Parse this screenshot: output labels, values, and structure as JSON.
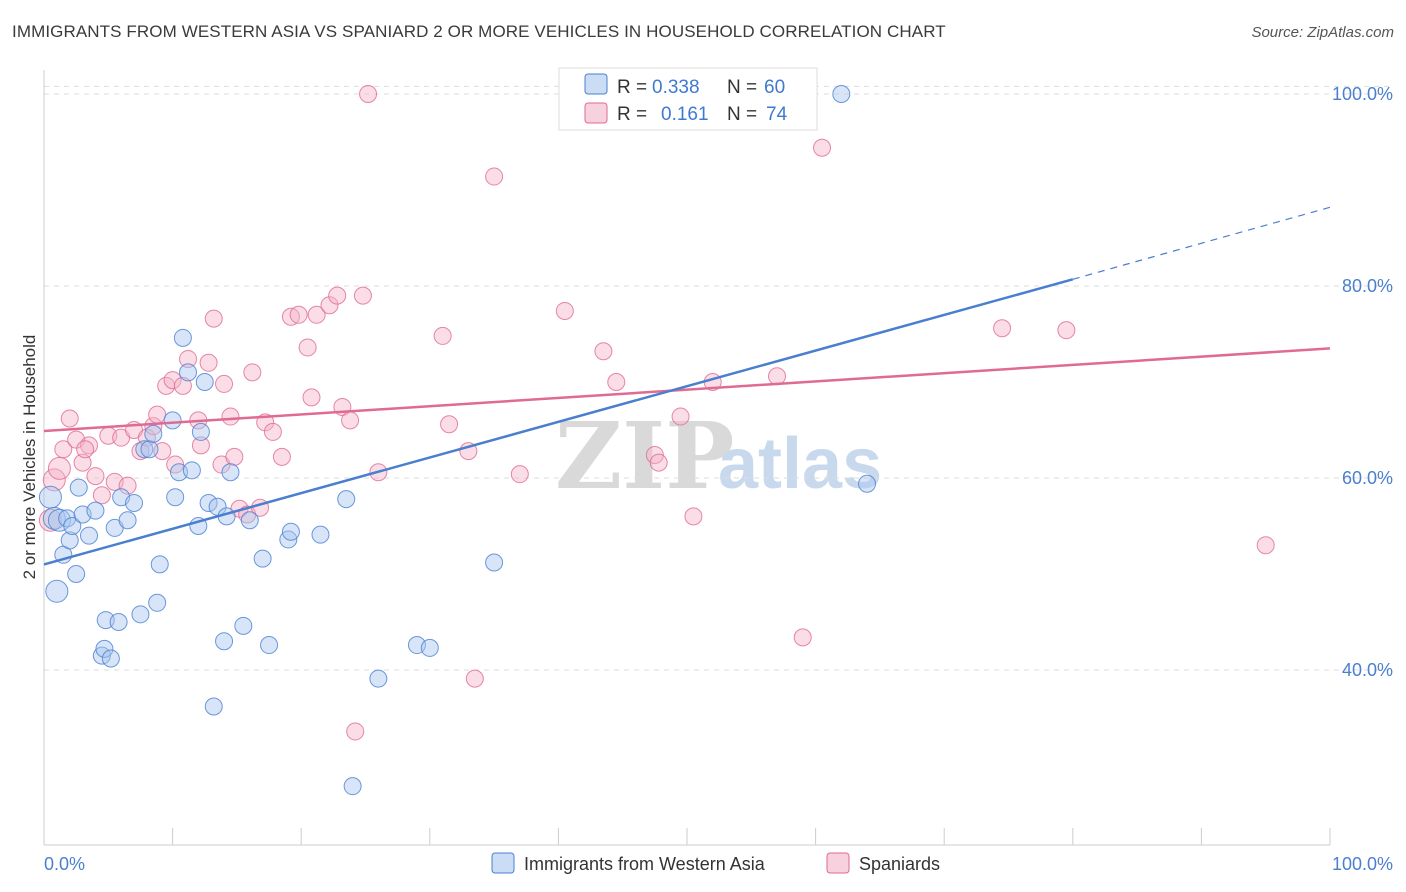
{
  "title": "IMMIGRANTS FROM WESTERN ASIA VS SPANIARD 2 OR MORE VEHICLES IN HOUSEHOLD CORRELATION CHART",
  "source": "Source: ZipAtlas.com",
  "watermark": {
    "zip": "ZIP",
    "atlas": "atlas"
  },
  "colors": {
    "blue": "#4a7fd0",
    "blue_fill": "#a9c6ef",
    "pink": "#e06a94",
    "pink_fill": "#f4b3c8",
    "grid": "#dddddd"
  },
  "legend": {
    "rows": [
      {
        "r_label": "R =",
        "r_value": "0.338",
        "n_label": "N =",
        "n_value": "60"
      },
      {
        "r_label": "R =",
        "r_value": "0.161",
        "n_label": "N =",
        "n_value": "74"
      }
    ]
  },
  "chart_data": {
    "type": "scatter",
    "title": "IMMIGRANTS FROM WESTERN ASIA VS SPANIARD 2 OR MORE VEHICLES IN HOUSEHOLD CORRELATION CHART",
    "xlabel": "",
    "ylabel": "2 or more Vehicles in Household",
    "xlim": [
      0,
      100
    ],
    "ylim": [
      20,
      102
    ],
    "x_tick_labels": [
      "0.0%",
      "100.0%"
    ],
    "y_ticks": [
      40,
      60,
      80,
      100
    ],
    "y_tick_labels": [
      "40.0%",
      "60.0%",
      "80.0%",
      "100.0%"
    ],
    "grid": true,
    "legend_position": "top-center",
    "series": [
      {
        "name": "Immigrants from Western Asia",
        "color": "#4a7fd0",
        "r": 0.338,
        "n": 60,
        "trend": {
          "x0": 0,
          "y0": 51.0,
          "x1": 80,
          "y1": 80.7,
          "dashed_to": [
            100,
            88.2
          ]
        },
        "points": [
          [
            0.5,
            58.0
          ],
          [
            0.8,
            55.8
          ],
          [
            1.0,
            48.2
          ],
          [
            1.2,
            55.6
          ],
          [
            1.5,
            52.0
          ],
          [
            1.8,
            55.8
          ],
          [
            2.0,
            53.5
          ],
          [
            2.2,
            55.0
          ],
          [
            2.5,
            50.0
          ],
          [
            2.7,
            59.0
          ],
          [
            3.0,
            56.2
          ],
          [
            3.5,
            54.0
          ],
          [
            4.0,
            56.6
          ],
          [
            4.5,
            41.5
          ],
          [
            4.7,
            42.2
          ],
          [
            4.8,
            45.2
          ],
          [
            5.2,
            41.2
          ],
          [
            5.5,
            54.8
          ],
          [
            5.8,
            45.0
          ],
          [
            6.0,
            58.0
          ],
          [
            6.5,
            55.6
          ],
          [
            7.0,
            57.4
          ],
          [
            7.5,
            45.8
          ],
          [
            7.8,
            63.0
          ],
          [
            8.2,
            63.0
          ],
          [
            8.5,
            64.6
          ],
          [
            8.8,
            47.0
          ],
          [
            9.0,
            51.0
          ],
          [
            10.0,
            66.0
          ],
          [
            10.2,
            58.0
          ],
          [
            10.5,
            60.6
          ],
          [
            10.8,
            74.6
          ],
          [
            11.2,
            71.0
          ],
          [
            11.5,
            60.8
          ],
          [
            12.0,
            55.0
          ],
          [
            12.2,
            64.8
          ],
          [
            12.5,
            70.0
          ],
          [
            12.8,
            57.4
          ],
          [
            13.2,
            36.2
          ],
          [
            13.5,
            57.0
          ],
          [
            14.0,
            43.0
          ],
          [
            14.2,
            56.0
          ],
          [
            14.5,
            60.6
          ],
          [
            15.5,
            44.6
          ],
          [
            16.0,
            55.6
          ],
          [
            17.0,
            51.6
          ],
          [
            17.5,
            42.6
          ],
          [
            19.0,
            53.6
          ],
          [
            19.2,
            54.4
          ],
          [
            21.5,
            54.1
          ],
          [
            23.5,
            57.8
          ],
          [
            24.0,
            27.9
          ],
          [
            26.0,
            39.1
          ],
          [
            29.0,
            42.6
          ],
          [
            30.0,
            42.3
          ],
          [
            35.0,
            51.2
          ],
          [
            42.5,
            100.0
          ],
          [
            49.5,
            100.0
          ],
          [
            62.0,
            100.0
          ],
          [
            64.0,
            59.4
          ]
        ]
      },
      {
        "name": "Spaniards",
        "color": "#e06a94",
        "r": 0.161,
        "n": 74,
        "trend": {
          "x0": 0,
          "y0": 64.9,
          "x1": 100,
          "y1": 73.5
        },
        "points": [
          [
            0.5,
            55.6
          ],
          [
            0.8,
            59.8
          ],
          [
            1.2,
            61.0
          ],
          [
            1.5,
            63.0
          ],
          [
            2.0,
            66.2
          ],
          [
            2.5,
            64.0
          ],
          [
            3.0,
            61.6
          ],
          [
            3.5,
            63.4
          ],
          [
            4.0,
            60.2
          ],
          [
            4.5,
            58.2
          ],
          [
            5.0,
            64.4
          ],
          [
            5.5,
            59.6
          ],
          [
            6.0,
            64.2
          ],
          [
            6.5,
            59.2
          ],
          [
            7.0,
            65.0
          ],
          [
            7.5,
            62.8
          ],
          [
            8.0,
            64.2
          ],
          [
            8.5,
            65.4
          ],
          [
            8.8,
            66.6
          ],
          [
            9.2,
            62.8
          ],
          [
            9.5,
            69.6
          ],
          [
            10.0,
            70.2
          ],
          [
            10.2,
            61.4
          ],
          [
            10.8,
            69.6
          ],
          [
            11.2,
            72.4
          ],
          [
            12.0,
            66.0
          ],
          [
            12.2,
            63.4
          ],
          [
            12.8,
            72.0
          ],
          [
            13.2,
            76.6
          ],
          [
            13.8,
            61.4
          ],
          [
            14.0,
            69.8
          ],
          [
            14.5,
            66.4
          ],
          [
            14.8,
            62.2
          ],
          [
            15.2,
            56.8
          ],
          [
            15.8,
            56.2
          ],
          [
            16.2,
            71.0
          ],
          [
            16.8,
            56.9
          ],
          [
            17.2,
            65.8
          ],
          [
            17.8,
            64.8
          ],
          [
            18.5,
            62.2
          ],
          [
            19.2,
            76.8
          ],
          [
            19.8,
            77.0
          ],
          [
            20.5,
            73.6
          ],
          [
            20.8,
            68.4
          ],
          [
            21.2,
            77.0
          ],
          [
            22.2,
            78.0
          ],
          [
            22.8,
            79.0
          ],
          [
            23.2,
            67.4
          ],
          [
            23.8,
            66.0
          ],
          [
            24.2,
            33.6
          ],
          [
            24.8,
            79.0
          ],
          [
            25.2,
            100.0
          ],
          [
            26.0,
            60.6
          ],
          [
            31.0,
            74.8
          ],
          [
            31.5,
            65.6
          ],
          [
            33.0,
            62.8
          ],
          [
            33.5,
            39.1
          ],
          [
            35.0,
            91.4
          ],
          [
            37.0,
            60.4
          ],
          [
            40.5,
            77.4
          ],
          [
            43.5,
            73.2
          ],
          [
            44.5,
            70.0
          ],
          [
            47.5,
            62.4
          ],
          [
            47.8,
            61.6
          ],
          [
            49.5,
            66.4
          ],
          [
            50.5,
            56.0
          ],
          [
            52.0,
            70.0
          ],
          [
            57.0,
            70.6
          ],
          [
            59.0,
            43.4
          ],
          [
            60.5,
            94.4
          ],
          [
            74.5,
            75.6
          ],
          [
            79.5,
            75.4
          ],
          [
            95.0,
            53.0
          ],
          [
            3.2,
            63.0
          ]
        ]
      }
    ]
  },
  "bottom_legend": [
    {
      "label": "Immigrants from Western Asia"
    },
    {
      "label": "Spaniards"
    }
  ]
}
